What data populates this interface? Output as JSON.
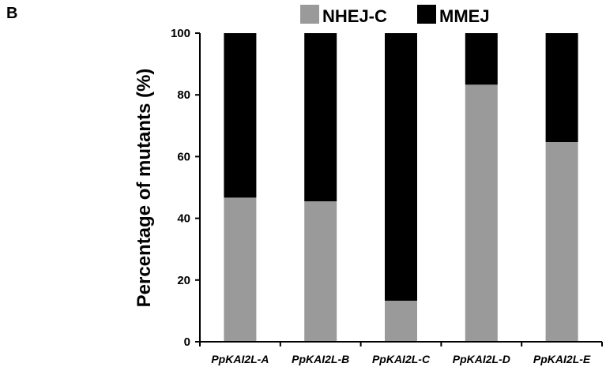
{
  "panel_label": "B",
  "chart_data": {
    "type": "bar",
    "stacked": true,
    "categories": [
      "PpKAI2L-A",
      "PpKAI2L-B",
      "PpKAI2L-C",
      "PpKAI2L-D",
      "PpKAI2L-E"
    ],
    "series": [
      {
        "name": "NHEJ-C",
        "color": "#9a9a9a",
        "values": [
          46.7,
          45.5,
          13.3,
          83.3,
          64.7
        ]
      },
      {
        "name": "MMEJ",
        "color": "#000000",
        "values": [
          53.3,
          54.5,
          86.7,
          16.7,
          35.3
        ]
      }
    ],
    "ylabel": "Percentage of mutants (%)",
    "xlabel": "",
    "ylim": [
      0,
      100
    ],
    "yticks": [
      0,
      20,
      40,
      60,
      80,
      100
    ],
    "grid": false,
    "legend_position": "top"
  }
}
